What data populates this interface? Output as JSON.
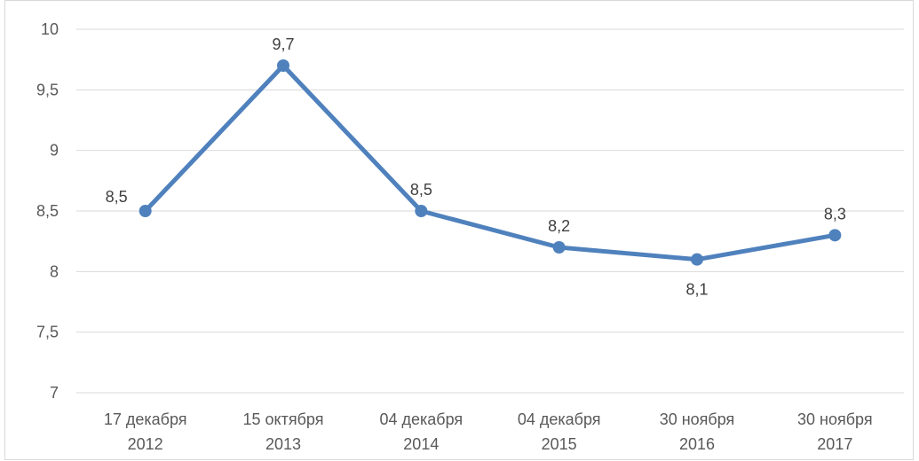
{
  "chart_data": {
    "type": "line",
    "categories": [
      [
        "17 декабря",
        "2012"
      ],
      [
        "15 октября",
        "2013"
      ],
      [
        "04 декабря",
        "2014"
      ],
      [
        "04 декабря",
        "2015"
      ],
      [
        "30 ноября",
        "2016"
      ],
      [
        "30 ноября",
        "2017"
      ]
    ],
    "series": [
      {
        "values": [
          8.5,
          9.7,
          8.5,
          8.2,
          8.1,
          8.3
        ],
        "labels": [
          "8,5",
          "9,7",
          "8,5",
          "8,2",
          "8,1",
          "8,3"
        ],
        "label_positions": [
          "left",
          "above",
          "above",
          "above",
          "below",
          "above"
        ],
        "color": "#4f81bd"
      }
    ],
    "ylim": [
      7,
      10
    ],
    "y_ticks": [
      7,
      7.5,
      8,
      8.5,
      9,
      9.5,
      10
    ],
    "y_tick_labels": [
      "7",
      "7,5",
      "8",
      "8,5",
      "9",
      "9,5",
      "10"
    ],
    "title": "",
    "xlabel": "",
    "ylabel": "",
    "grid": true,
    "legend": "none",
    "colors": {
      "grid": "#d9d9d9",
      "axis_text": "#595959",
      "label_text": "#404040"
    }
  }
}
